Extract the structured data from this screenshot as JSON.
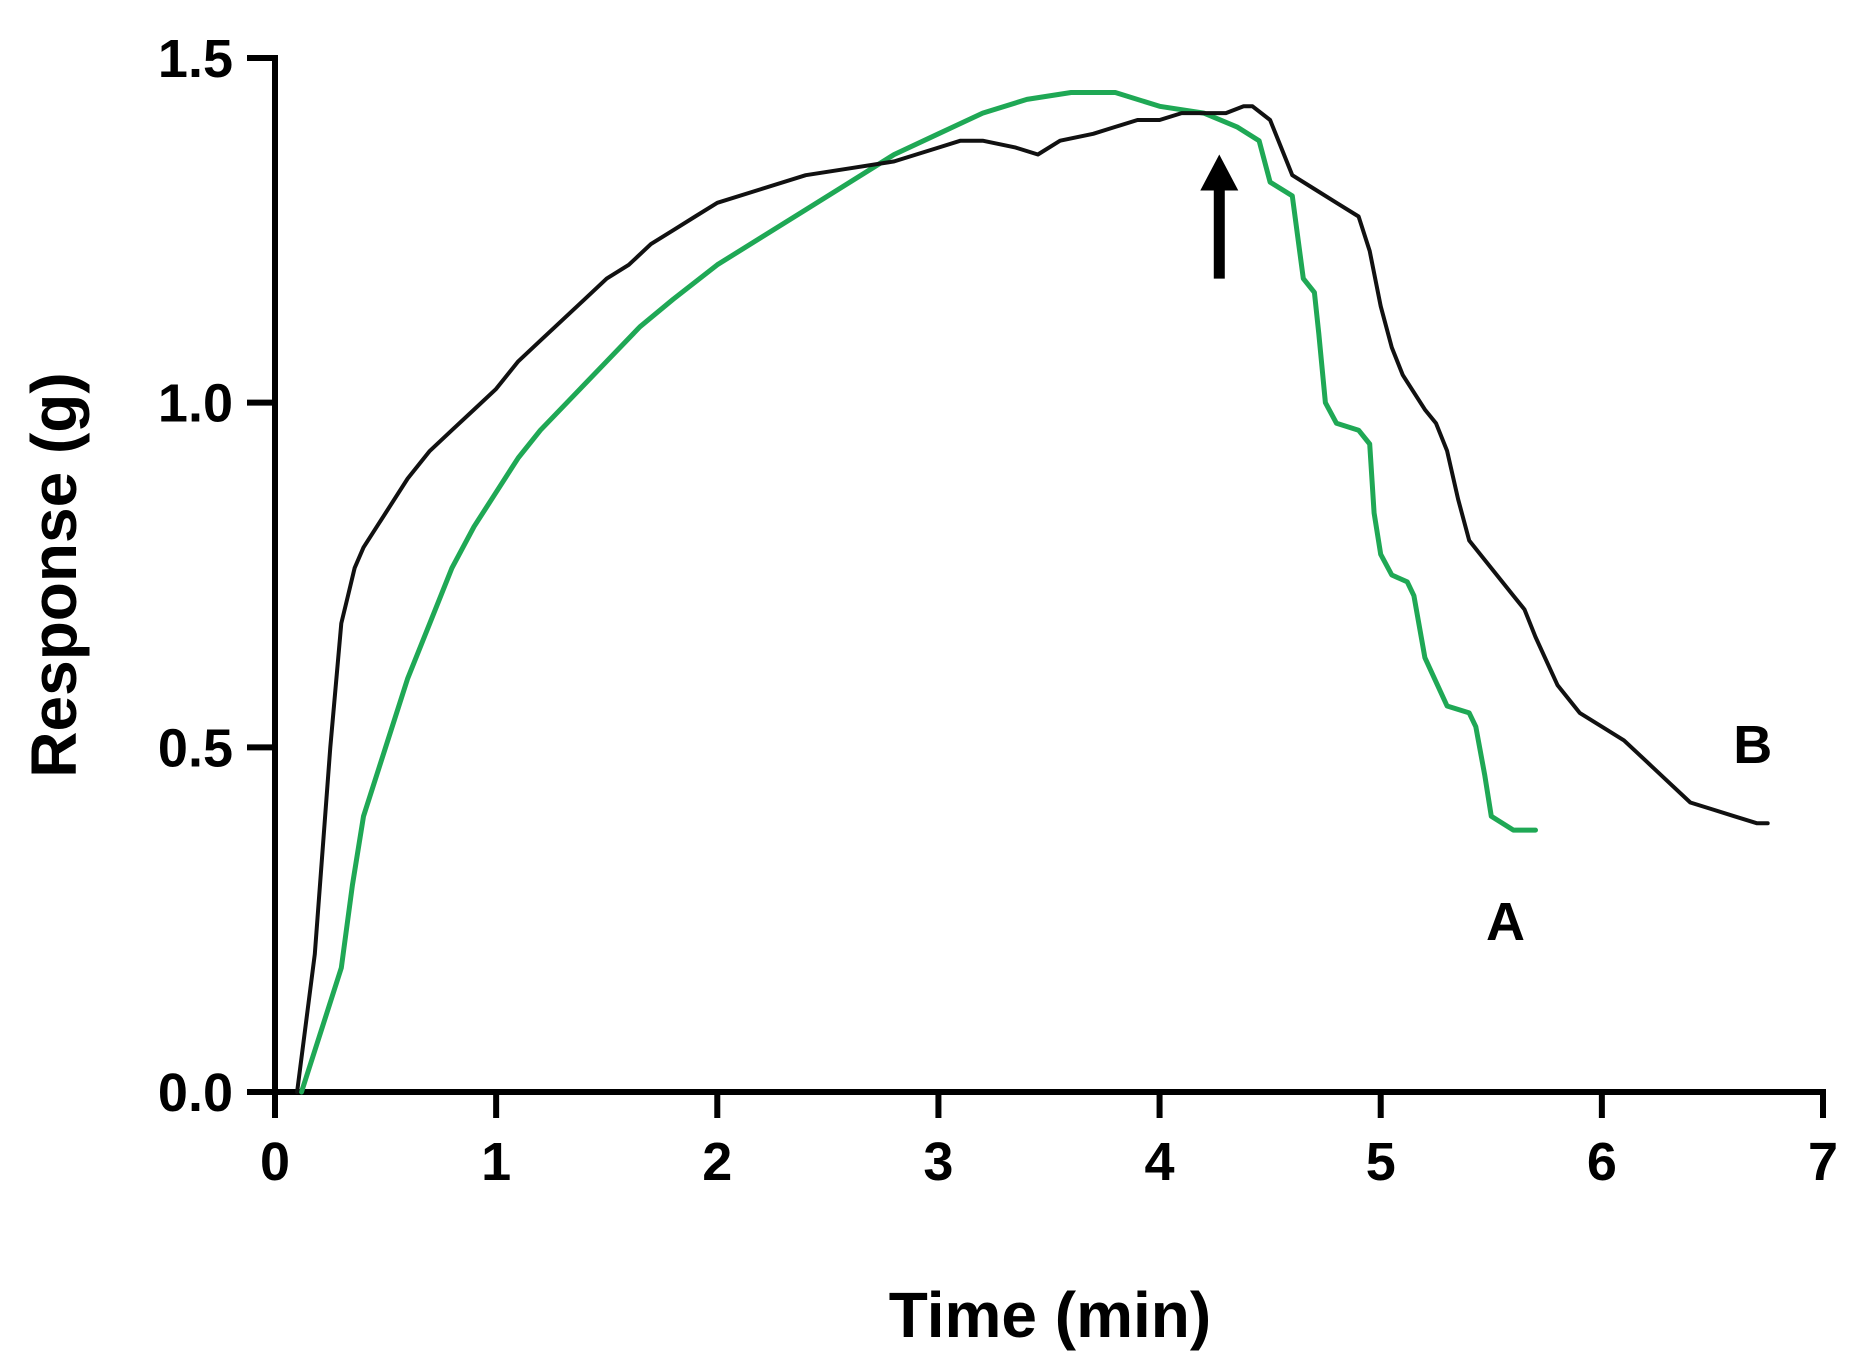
{
  "chart_data": {
    "type": "line",
    "title": "",
    "xlabel": "Time (min)",
    "ylabel": "Response (g)",
    "xlim": [
      0,
      7
    ],
    "ylim": [
      0,
      1.5
    ],
    "xticks": [
      0,
      1,
      2,
      3,
      4,
      5,
      6,
      7
    ],
    "xtick_labels": [
      "0",
      "1",
      "2",
      "3",
      "4",
      "5",
      "6",
      "7"
    ],
    "yticks": [
      0,
      0.5,
      1.0,
      1.5
    ],
    "ytick_labels": [
      "0.0",
      "0.5",
      "1.0",
      "1.5"
    ],
    "grid": false,
    "series": [
      {
        "name": "A",
        "color": "#1fa855",
        "x": [
          0.12,
          0.2,
          0.3,
          0.35,
          0.4,
          0.5,
          0.6,
          0.7,
          0.8,
          0.9,
          1.0,
          1.1,
          1.2,
          1.35,
          1.5,
          1.65,
          1.8,
          2.0,
          2.2,
          2.4,
          2.6,
          2.8,
          3.0,
          3.2,
          3.4,
          3.6,
          3.8,
          4.0,
          4.2,
          4.35,
          4.45,
          4.5,
          4.6,
          4.65,
          4.7,
          4.72,
          4.75,
          4.8,
          4.9,
          4.95,
          4.97,
          5.0,
          5.05,
          5.12,
          5.15,
          5.2,
          5.3,
          5.4,
          5.43,
          5.47,
          5.5,
          5.6,
          5.7
        ],
        "values": [
          0.0,
          0.08,
          0.18,
          0.3,
          0.4,
          0.5,
          0.6,
          0.68,
          0.76,
          0.82,
          0.87,
          0.92,
          0.96,
          1.01,
          1.06,
          1.11,
          1.15,
          1.2,
          1.24,
          1.28,
          1.32,
          1.36,
          1.39,
          1.42,
          1.44,
          1.45,
          1.45,
          1.43,
          1.42,
          1.4,
          1.38,
          1.32,
          1.3,
          1.18,
          1.16,
          1.1,
          1.0,
          0.97,
          0.96,
          0.94,
          0.84,
          0.78,
          0.75,
          0.74,
          0.72,
          0.63,
          0.56,
          0.55,
          0.53,
          0.46,
          0.4,
          0.38,
          0.38
        ]
      },
      {
        "name": "B",
        "color": "#111111",
        "x": [
          0.1,
          0.18,
          0.25,
          0.3,
          0.33,
          0.36,
          0.4,
          0.5,
          0.6,
          0.7,
          0.8,
          0.9,
          1.0,
          1.1,
          1.2,
          1.3,
          1.4,
          1.5,
          1.6,
          1.7,
          1.8,
          1.9,
          2.0,
          2.2,
          2.4,
          2.6,
          2.8,
          3.0,
          3.1,
          3.2,
          3.35,
          3.45,
          3.55,
          3.7,
          3.8,
          3.9,
          4.0,
          4.1,
          4.2,
          4.3,
          4.38,
          4.42,
          4.5,
          4.55,
          4.6,
          4.7,
          4.8,
          4.9,
          4.95,
          5.0,
          5.05,
          5.1,
          5.2,
          5.25,
          5.3,
          5.35,
          5.4,
          5.5,
          5.6,
          5.65,
          5.7,
          5.8,
          5.9,
          6.0,
          6.1,
          6.2,
          6.3,
          6.4,
          6.5,
          6.6,
          6.7,
          6.75
        ],
        "values": [
          0.0,
          0.2,
          0.5,
          0.68,
          0.72,
          0.76,
          0.79,
          0.84,
          0.89,
          0.93,
          0.96,
          0.99,
          1.02,
          1.06,
          1.09,
          1.12,
          1.15,
          1.18,
          1.2,
          1.23,
          1.25,
          1.27,
          1.29,
          1.31,
          1.33,
          1.34,
          1.35,
          1.37,
          1.38,
          1.38,
          1.37,
          1.36,
          1.38,
          1.39,
          1.4,
          1.41,
          1.41,
          1.42,
          1.42,
          1.42,
          1.43,
          1.43,
          1.41,
          1.37,
          1.33,
          1.31,
          1.29,
          1.27,
          1.22,
          1.14,
          1.08,
          1.04,
          0.99,
          0.97,
          0.93,
          0.86,
          0.8,
          0.76,
          0.72,
          0.7,
          0.66,
          0.59,
          0.55,
          0.53,
          0.51,
          0.48,
          0.45,
          0.42,
          0.41,
          0.4,
          0.39,
          0.39
        ]
      }
    ],
    "annotations": [
      {
        "type": "arrow",
        "direction": "up",
        "x": 4.27,
        "y_from": 1.18,
        "y_to": 1.36,
        "color": "#000000"
      }
    ]
  }
}
